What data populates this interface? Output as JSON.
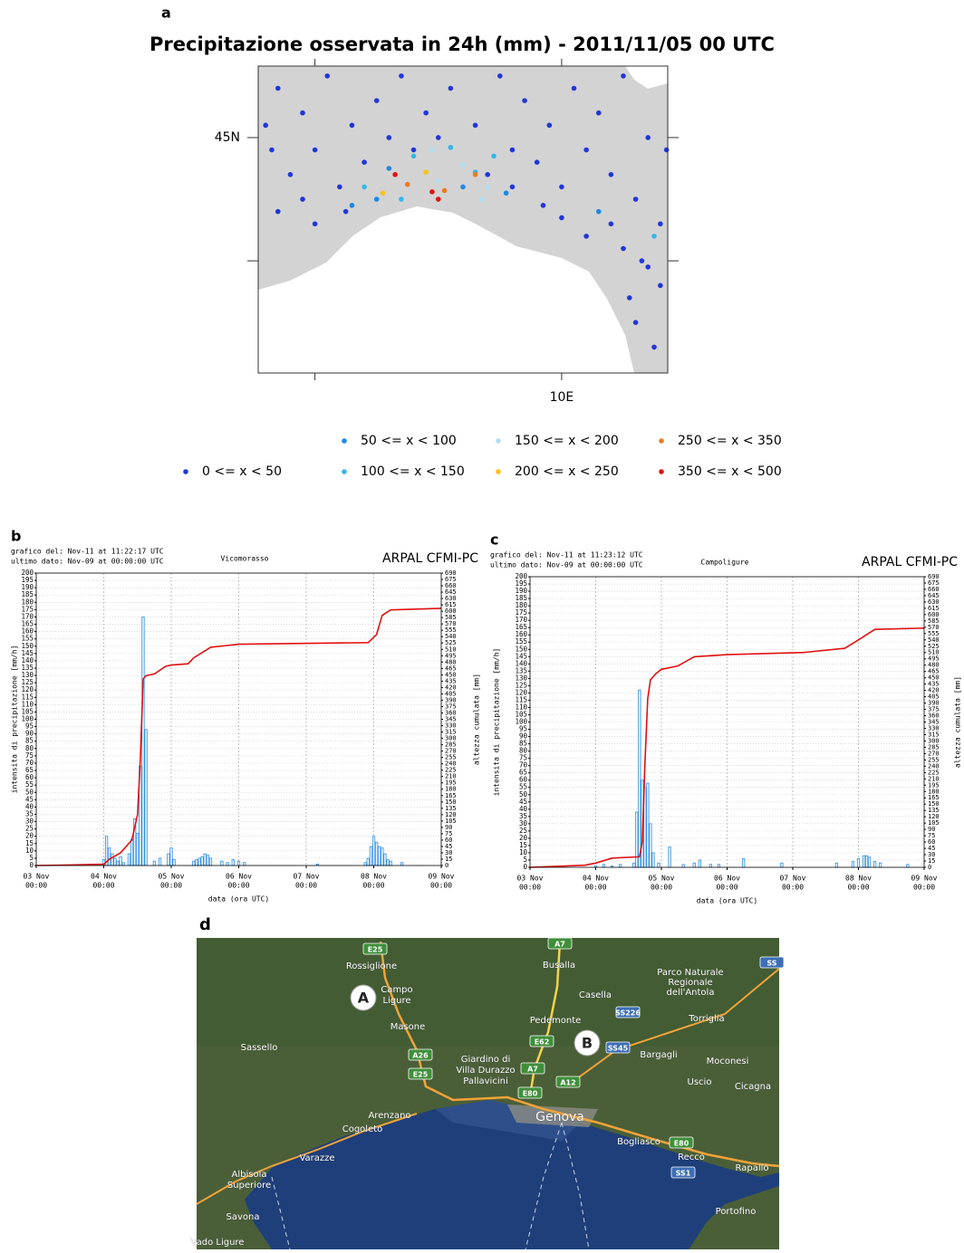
{
  "chart_data": [
    {
      "type": "scatter",
      "panel_label": "a",
      "title": "Precipitazione osservata in 24h (mm) - 2011/11/05 00 UTC",
      "xlim": [
        7.54,
        10.86
      ],
      "ylim": [
        43.09,
        45.58
      ],
      "xticks": [
        {
          "value": 8,
          "label": null
        },
        {
          "value": 10,
          "label": "10E"
        }
      ],
      "yticks": [
        {
          "value": 44,
          "label": null
        },
        {
          "value": 45,
          "label": "45N"
        }
      ],
      "series": [
        {
          "name": "0 <= x < 50",
          "color": "#2236d8",
          "x": [
            7.7,
            7.9,
            8.1,
            7.65,
            7.8,
            8.0,
            8.3,
            8.4,
            7.7,
            7.9,
            8.2,
            8.5,
            8.7,
            8.9,
            9.1,
            9.3,
            9.5,
            9.7,
            9.9,
            10.1,
            10.3,
            10.5,
            10.7,
            10.2,
            10.4,
            10.6,
            10.8,
            10.5,
            10.8,
            10.6,
            10.75,
            10.4,
            10.0,
            9.8,
            9.6,
            9.4,
            10.2,
            8.0,
            8.6,
            8.8,
            10.85,
            7.6,
            8.25,
            9.0,
            9.6,
            10.0,
            10.65,
            10.7,
            10.55,
            9.85
          ],
          "y": [
            45.4,
            45.2,
            45.5,
            44.9,
            44.7,
            44.9,
            45.1,
            44.8,
            44.4,
            44.5,
            44.6,
            45.3,
            45.5,
            45.2,
            45.4,
            45.1,
            45.5,
            45.3,
            45.1,
            45.4,
            45.2,
            45.5,
            45.0,
            44.9,
            44.7,
            44.5,
            44.3,
            44.1,
            43.8,
            43.5,
            43.3,
            44.3,
            44.6,
            44.8,
            44.6,
            44.7,
            44.2,
            44.3,
            45.0,
            44.9,
            44.9,
            45.1,
            44.4,
            45.0,
            44.9,
            44.35,
            44.0,
            43.95,
            43.7,
            44.45
          ]
        },
        {
          "name": "50 <= x < 100",
          "color": "#1e88e5",
          "x": [
            8.5,
            8.6,
            9.2,
            10.3,
            8.3,
            9.55
          ],
          "y": [
            44.5,
            44.75,
            44.6,
            44.4,
            44.45,
            44.55
          ]
        },
        {
          "name": "100 <= x < 150",
          "color": "#37b6ea",
          "x": [
            8.7,
            8.8,
            9.3,
            8.4,
            9.1,
            10.75,
            9.45
          ],
          "y": [
            44.5,
            44.85,
            44.72,
            44.6,
            44.92,
            44.2,
            44.85
          ]
        },
        {
          "name": "150 <= x < 200",
          "color": "#b3dff0",
          "x": [
            9.0,
            9.4,
            8.95,
            9.2,
            9.35
          ],
          "y": [
            44.65,
            44.6,
            44.9,
            44.78,
            44.5
          ]
        },
        {
          "name": "200 <= x < 250",
          "color": "#f7c21e",
          "x": [
            8.55,
            8.9
          ],
          "y": [
            44.55,
            44.72
          ]
        },
        {
          "name": "250 <= x < 350",
          "color": "#ee7a22",
          "x": [
            9.05,
            9.3,
            8.75
          ],
          "y": [
            44.57,
            44.7,
            44.62
          ]
        },
        {
          "name": "350 <= x < 500",
          "color": "#dd1414",
          "x": [
            8.65,
            9.0,
            8.95
          ],
          "y": [
            44.7,
            44.5,
            44.56
          ]
        }
      ]
    },
    {
      "type": "bar_line",
      "panel_label": "b",
      "header_lines": [
        "grafico del: Nov-11 at 11:22:17 UTC",
        "ultimo dato: Nov-09 at 00:00:00 UTC"
      ],
      "title": "Vicomorasso",
      "source": "ARPAL CFMI-PC",
      "ylabel": "intensita di precipitazione [mm/h]",
      "y2label": "altezza cumulata [mm]",
      "xlabel": "data (ora UTC)",
      "xlim": [
        0,
        144
      ],
      "ylim": [
        0,
        200
      ],
      "y2lim": [
        0,
        690
      ],
      "grid": true,
      "xticks": [
        {
          "value": 0,
          "label": [
            "03 Nov",
            "00:00"
          ]
        },
        {
          "value": 24,
          "label": [
            "04 Nov",
            "00:00"
          ]
        },
        {
          "value": 48,
          "label": [
            "05 Nov",
            "00:00"
          ]
        },
        {
          "value": 72,
          "label": [
            "06 Nov",
            "00:00"
          ]
        },
        {
          "value": 96,
          "label": [
            "07 Nov",
            "00:00"
          ]
        },
        {
          "value": 120,
          "label": [
            "08 Nov",
            "00:00"
          ]
        },
        {
          "value": 144,
          "label": [
            "09 Nov",
            "00:00"
          ]
        }
      ],
      "yticks": [
        0,
        5,
        10,
        15,
        20,
        25,
        30,
        35,
        40,
        45,
        50,
        55,
        60,
        65,
        70,
        75,
        80,
        85,
        90,
        95,
        100,
        105,
        110,
        115,
        120,
        125,
        130,
        135,
        140,
        145,
        150,
        155,
        160,
        165,
        170,
        175,
        180,
        185,
        190,
        195,
        200
      ],
      "y2ticks": [
        0,
        15,
        30,
        45,
        60,
        75,
        90,
        105,
        120,
        135,
        150,
        165,
        180,
        195,
        210,
        225,
        240,
        255,
        270,
        285,
        300,
        315,
        330,
        345,
        360,
        375,
        390,
        405,
        420,
        435,
        450,
        465,
        480,
        495,
        510,
        525,
        540,
        555,
        570,
        585,
        600,
        615,
        630,
        645,
        660,
        675,
        690
      ],
      "series": [
        {
          "type": "bar",
          "color": "#2f8fe0",
          "x": [
            24,
            25,
            26,
            27,
            28,
            29,
            30,
            31,
            33,
            34,
            35,
            36,
            37,
            38,
            39,
            42,
            44,
            47,
            48,
            49,
            56,
            57,
            58,
            59,
            60,
            61,
            62,
            66,
            68,
            70,
            72,
            74,
            100,
            117,
            118,
            119,
            120,
            121,
            122,
            123,
            124,
            125,
            126,
            130
          ],
          "values": [
            4,
            20,
            12,
            8,
            5,
            3,
            6,
            2,
            8,
            18,
            32,
            22,
            68,
            170,
            93,
            3,
            5,
            8,
            12,
            4,
            3,
            4,
            5,
            6,
            8,
            7,
            5,
            3,
            2,
            4,
            3,
            2,
            1,
            2,
            5,
            13,
            20,
            16,
            13,
            12,
            8,
            4,
            3,
            2
          ]
        },
        {
          "type": "line",
          "axis": "y2",
          "color": "#e01010",
          "x": [
            0,
            10,
            24,
            26,
            30,
            34,
            36,
            37,
            38,
            39,
            42,
            46,
            48,
            54,
            56,
            62,
            72,
            118,
            121,
            123,
            126,
            144
          ],
          "values": [
            0,
            1,
            3,
            15,
            30,
            60,
            120,
            250,
            440,
            448,
            452,
            470,
            473,
            476,
            490,
            515,
            522,
            526,
            545,
            590,
            603,
            607
          ]
        }
      ]
    },
    {
      "type": "bar_line",
      "panel_label": "c",
      "header_lines": [
        "grafico del: Nov-11 at 11:23:12 UTC",
        "ultimo dato: Nov-09 at 00:00:00 UTC"
      ],
      "title": "Campoligure",
      "source": "ARPAL CFMI-PC",
      "ylabel": "intensita di precipitazione [mm/h]",
      "y2label": "altezza cumulata [mm]",
      "xlabel": "data (ora UTC)",
      "xlim": [
        0,
        144
      ],
      "ylim": [
        0,
        200
      ],
      "y2lim": [
        0,
        690
      ],
      "grid": true,
      "xticks": [
        {
          "value": 0,
          "label": [
            "03 Nov",
            "00:00"
          ]
        },
        {
          "value": 24,
          "label": [
            "04 Nov",
            "00:00"
          ]
        },
        {
          "value": 48,
          "label": [
            "05 Nov",
            "00:00"
          ]
        },
        {
          "value": 72,
          "label": [
            "06 Nov",
            "00:00"
          ]
        },
        {
          "value": 96,
          "label": [
            "07 Nov",
            "00:00"
          ]
        },
        {
          "value": 120,
          "label": [
            "08 Nov",
            "00:00"
          ]
        },
        {
          "value": 144,
          "label": [
            "09 Nov",
            "00:00"
          ]
        }
      ],
      "yticks": [
        0,
        5,
        10,
        15,
        20,
        25,
        30,
        35,
        40,
        45,
        50,
        55,
        60,
        65,
        70,
        75,
        80,
        85,
        90,
        95,
        100,
        105,
        110,
        115,
        120,
        125,
        130,
        135,
        140,
        145,
        150,
        155,
        160,
        165,
        170,
        175,
        180,
        185,
        190,
        195,
        200
      ],
      "y2ticks": [
        0,
        15,
        30,
        45,
        60,
        75,
        90,
        105,
        120,
        135,
        150,
        165,
        180,
        195,
        210,
        225,
        240,
        255,
        270,
        285,
        300,
        315,
        330,
        345,
        360,
        375,
        390,
        405,
        420,
        435,
        450,
        465,
        480,
        495,
        510,
        525,
        540,
        555,
        570,
        585,
        600,
        615,
        630,
        645,
        660,
        675,
        690
      ],
      "series": [
        {
          "type": "bar",
          "color": "#2f8fe0",
          "x": [
            24,
            27,
            30,
            33,
            38,
            39,
            40,
            41,
            42,
            43,
            44,
            45,
            47,
            51,
            56,
            60,
            62,
            66,
            69,
            78,
            92,
            112,
            118,
            120,
            122,
            123,
            124,
            126,
            128,
            138
          ],
          "values": [
            1,
            2,
            1,
            2,
            3,
            38,
            122,
            60,
            55,
            58,
            30,
            10,
            3,
            14,
            2,
            3,
            5,
            2,
            2,
            6,
            3,
            3,
            4,
            6,
            8,
            8,
            7,
            4,
            3,
            2
          ]
        },
        {
          "type": "line",
          "axis": "y2",
          "color": "#e01010",
          "x": [
            0,
            20,
            24,
            30,
            40,
            41,
            42,
            43,
            44,
            46,
            48,
            54,
            60,
            72,
            100,
            115,
            120,
            126,
            144
          ],
          "values": [
            0,
            5,
            10,
            22,
            25,
            60,
            250,
            400,
            445,
            460,
            470,
            478,
            500,
            505,
            510,
            520,
            540,
            565,
            568
          ]
        }
      ]
    }
  ],
  "map_d": {
    "panel_label": "d",
    "labels": [
      "Rossiglione",
      "Campo",
      "Ligure",
      "Masone",
      "Sassello",
      "Busalla",
      "Casella",
      "Parco Naturale",
      "Regionale",
      "dell'Antola",
      "Pedemonte",
      "Torriglia",
      "Bargagli",
      "Moconesi",
      "Uscio",
      "Cicagna",
      "Giardino di",
      "Villa Durazzo",
      "Pallavicini",
      "Arenzano",
      "Cogoleto",
      "Genova",
      "Varazze",
      "Albisola",
      "Superiore",
      "Savona",
      "Vado Ligure",
      "Bogliasco",
      "Recco",
      "Rapallo",
      "Portofino"
    ],
    "road_shields": [
      "E25",
      "A7",
      "A26",
      "E25",
      "E62",
      "A7",
      "E80",
      "A12",
      "SS45",
      "SS226",
      "E80",
      "SS1",
      "SS"
    ],
    "markers": [
      "A",
      "B"
    ]
  }
}
